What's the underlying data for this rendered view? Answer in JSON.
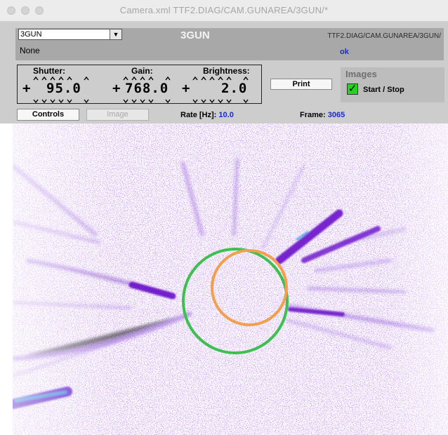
{
  "window": {
    "title": "Camera.xml  TTF2.DIAG/CAM.GUNAREA/3GUN/*"
  },
  "header": {
    "camera_select": "3GUN",
    "title": "3GUN",
    "path": "TTF2.DIAG/CAM.GUNAREA/3GUN/",
    "status_left": "None",
    "status_right": "ok"
  },
  "controls": {
    "shutter": {
      "label": "Shutter:",
      "value": "95.0"
    },
    "gain": {
      "label": "Gain:",
      "value": "768.0"
    },
    "brightness": {
      "label": "Brightness:",
      "value": "2.0"
    },
    "print_label": "Print",
    "images_title": "Images",
    "start_stop_label": "Start / Stop",
    "start_stop_checked": true
  },
  "toolbar": {
    "controls_label": "Controls",
    "image_label": "Image",
    "rate_label": "Rate [Hz]:",
    "rate_value": "10.0",
    "frame_label": "Frame:",
    "frame_value": "3065"
  },
  "colors": {
    "beam": "#7a2fd0",
    "green_circle": "#3fbf4f",
    "orange_circle": "#f2a050",
    "accent_text": "#1a2cc4",
    "checkbox": "#22d41e"
  }
}
